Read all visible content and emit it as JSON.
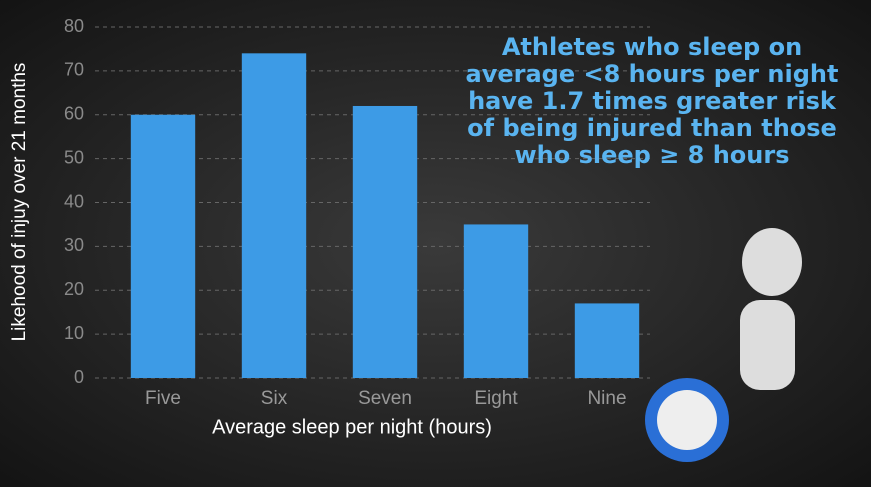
{
  "chart_data": {
    "type": "bar",
    "annotation": [
      "Athletes who sleep on",
      "average <8 hours per night",
      "have 1.7 times greater risk",
      "of being injured than those",
      "who sleep ≥ 8 hours"
    ],
    "x_label": "Average sleep per night (hours)",
    "y_label": "Likehood of injuy over 21 months",
    "categories": [
      "Five",
      "Six",
      "Seven",
      "Eight",
      "Nine"
    ],
    "values": [
      60,
      74,
      62,
      35,
      17
    ],
    "color": "#3d9be6",
    "ylim": [
      0,
      80
    ],
    "yticks": [
      0,
      10,
      20,
      30,
      40,
      50,
      60,
      70,
      80
    ],
    "grid": true
  }
}
